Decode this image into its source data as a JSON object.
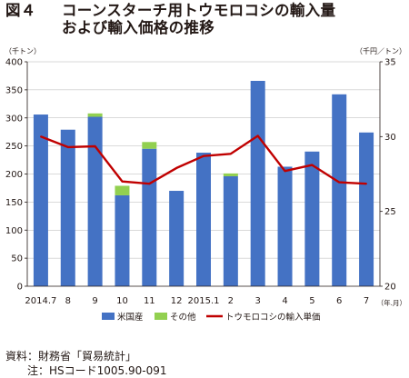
{
  "figure": {
    "number": "図４",
    "title_line1": "コーンスターチ用トウモロコシの輸入量",
    "title_line2": "および輸入価格の推移"
  },
  "chart_data": {
    "type": "bar+line",
    "left_unit": "（千トン）",
    "right_unit": "（千円／トン）",
    "x_unit": "（年.月）",
    "categories": [
      "2014.7",
      "8",
      "9",
      "10",
      "11",
      "12",
      "2015.1",
      "2",
      "3",
      "4",
      "5",
      "6",
      "7"
    ],
    "y_left": {
      "min": 0,
      "max": 400,
      "ticks": [
        0,
        50,
        100,
        150,
        200,
        250,
        300,
        350,
        400
      ]
    },
    "y_right": {
      "min": 20,
      "max": 35,
      "ticks": [
        20,
        25,
        30,
        35
      ]
    },
    "stacked_series": [
      {
        "name": "米国産",
        "color": "#4472c4",
        "values": [
          306,
          279,
          302,
          162,
          245,
          170,
          238,
          196,
          366,
          213,
          240,
          342,
          274
        ]
      },
      {
        "name": "その他",
        "color": "#92d050",
        "values": [
          0,
          0,
          6,
          17,
          12,
          0,
          0,
          5,
          0,
          0,
          0,
          0,
          0
        ]
      }
    ],
    "line_series": {
      "name": "トウモロコシの輸入単価",
      "color": "#c00000",
      "axis": "right",
      "values": [
        30.0,
        29.3,
        29.35,
        27.0,
        26.85,
        27.9,
        28.7,
        28.85,
        30.05,
        27.7,
        28.1,
        26.95,
        26.85
      ]
    },
    "grid": "horizontal",
    "legend_position": "bottom"
  },
  "notes": {
    "source": "資料：財務省「貿易統計」",
    "note_label": "注：",
    "note_text": "HSコード1005.90-091"
  }
}
